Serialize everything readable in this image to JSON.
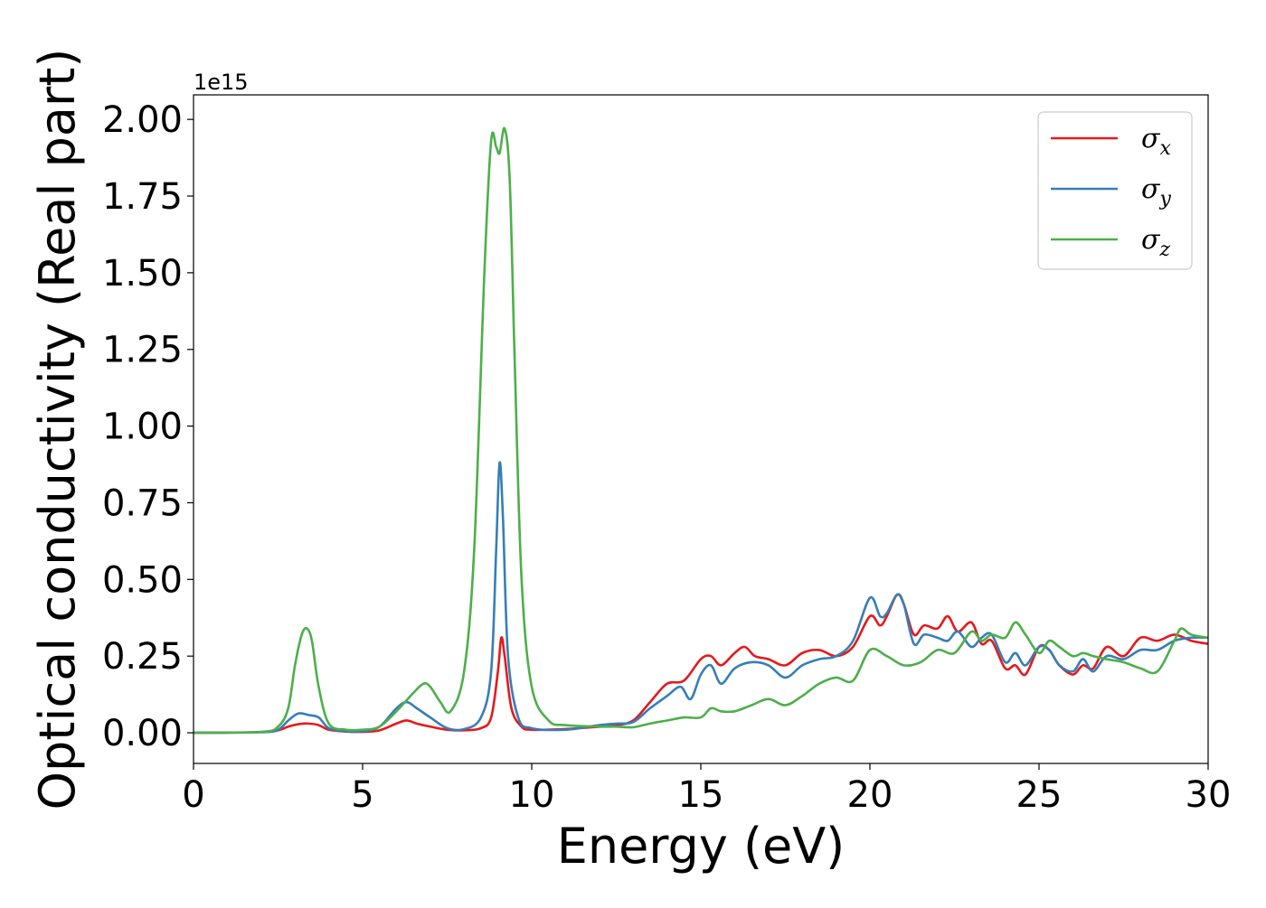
{
  "chart_data": {
    "type": "line",
    "xlabel": "Energy (eV)",
    "ylabel": "Optical conductivity (Real part)",
    "y_offset_label": "1e15",
    "xlim": [
      0,
      30
    ],
    "ylim": [
      -0.1,
      2.08
    ],
    "x_ticks": [
      0,
      5,
      10,
      15,
      20,
      25,
      30
    ],
    "x_tick_labels": [
      "0",
      "5",
      "10",
      "15",
      "20",
      "25",
      "30"
    ],
    "y_ticks": [
      0,
      0.25,
      0.5,
      0.75,
      1.0,
      1.25,
      1.5,
      1.75,
      2.0
    ],
    "y_tick_labels": [
      "0.00",
      "0.25",
      "0.50",
      "0.75",
      "1.00",
      "1.25",
      "1.50",
      "1.75",
      "2.00"
    ],
    "grid": false,
    "legend_position": "top-right",
    "series": [
      {
        "name": "σx",
        "legend_main": "σ",
        "legend_sub": "x",
        "color": "#e41a1c",
        "x": [
          0,
          2,
          2.5,
          2.8,
          3.1,
          3.4,
          3.7,
          4.0,
          4.5,
          5.0,
          5.5,
          6.0,
          6.3,
          6.6,
          7.0,
          7.5,
          8.0,
          8.5,
          8.8,
          9.0,
          9.1,
          9.2,
          9.4,
          9.7,
          10,
          11,
          12,
          12.5,
          13,
          13.5,
          14,
          14.5,
          15,
          15.3,
          15.6,
          16,
          16.3,
          16.6,
          17,
          17.5,
          18,
          18.5,
          19,
          19.5,
          20,
          20.3,
          20.5,
          20.8,
          21,
          21.3,
          21.6,
          22,
          22.3,
          22.6,
          23,
          23.3,
          23.6,
          24,
          24.3,
          24.6,
          25,
          25.3,
          25.6,
          26,
          26.3,
          26.6,
          27,
          27.5,
          28,
          28.5,
          29,
          29.5,
          30
        ],
        "y": [
          0,
          0.002,
          0.008,
          0.02,
          0.028,
          0.03,
          0.025,
          0.01,
          0.004,
          0.003,
          0.008,
          0.03,
          0.04,
          0.03,
          0.02,
          0.01,
          0.008,
          0.015,
          0.05,
          0.2,
          0.31,
          0.25,
          0.08,
          0.02,
          0.01,
          0.012,
          0.02,
          0.025,
          0.04,
          0.1,
          0.16,
          0.17,
          0.24,
          0.25,
          0.22,
          0.26,
          0.28,
          0.25,
          0.24,
          0.22,
          0.26,
          0.27,
          0.25,
          0.28,
          0.38,
          0.35,
          0.38,
          0.45,
          0.42,
          0.32,
          0.35,
          0.34,
          0.38,
          0.33,
          0.36,
          0.29,
          0.3,
          0.21,
          0.22,
          0.19,
          0.28,
          0.27,
          0.22,
          0.19,
          0.22,
          0.21,
          0.28,
          0.25,
          0.31,
          0.3,
          0.32,
          0.3,
          0.29
        ]
      },
      {
        "name": "σy",
        "legend_main": "σ",
        "legend_sub": "y",
        "color": "#377eb8",
        "x": [
          0,
          2,
          2.5,
          2.8,
          3.1,
          3.4,
          3.7,
          4.0,
          4.5,
          5.0,
          5.5,
          6.0,
          6.3,
          6.6,
          7.0,
          7.5,
          8.0,
          8.5,
          8.8,
          8.95,
          9.05,
          9.15,
          9.3,
          9.6,
          10,
          11,
          12,
          12.5,
          13,
          13.5,
          14,
          14.4,
          14.7,
          15,
          15.3,
          15.6,
          16,
          16.5,
          17,
          17.5,
          18,
          18.5,
          19,
          19.5,
          20,
          20.3,
          20.5,
          20.8,
          21,
          21.3,
          21.6,
          22,
          22.3,
          22.6,
          23,
          23.3,
          23.6,
          24,
          24.3,
          24.6,
          25,
          25.3,
          25.6,
          26,
          26.3,
          26.6,
          27,
          27.5,
          28,
          28.5,
          29,
          29.5,
          30
        ],
        "y": [
          0,
          0.002,
          0.01,
          0.04,
          0.063,
          0.058,
          0.05,
          0.015,
          0.005,
          0.005,
          0.02,
          0.08,
          0.1,
          0.08,
          0.05,
          0.015,
          0.012,
          0.05,
          0.2,
          0.6,
          0.88,
          0.7,
          0.25,
          0.05,
          0.015,
          0.01,
          0.025,
          0.03,
          0.035,
          0.08,
          0.12,
          0.15,
          0.11,
          0.19,
          0.22,
          0.16,
          0.21,
          0.23,
          0.22,
          0.18,
          0.22,
          0.24,
          0.25,
          0.3,
          0.44,
          0.38,
          0.39,
          0.45,
          0.42,
          0.29,
          0.32,
          0.31,
          0.3,
          0.33,
          0.28,
          0.31,
          0.32,
          0.23,
          0.26,
          0.22,
          0.28,
          0.27,
          0.22,
          0.2,
          0.24,
          0.2,
          0.25,
          0.24,
          0.27,
          0.27,
          0.3,
          0.31,
          0.31
        ]
      },
      {
        "name": "σz",
        "legend_main": "σ",
        "legend_sub": "z",
        "color": "#4daf4a",
        "x": [
          0,
          2,
          2.5,
          2.8,
          3.0,
          3.2,
          3.35,
          3.5,
          3.7,
          4.0,
          4.5,
          5.0,
          5.5,
          6.0,
          6.5,
          6.8,
          7.0,
          7.3,
          7.6,
          8.0,
          8.3,
          8.6,
          8.8,
          8.95,
          9.05,
          9.2,
          9.35,
          9.5,
          9.7,
          10,
          10.5,
          11,
          12,
          12.5,
          13,
          13.5,
          14,
          14.5,
          15,
          15.3,
          15.6,
          16,
          16.5,
          17,
          17.5,
          18,
          18.5,
          19,
          19.5,
          20,
          20.5,
          21,
          21.5,
          22,
          22.5,
          23,
          23.3,
          23.6,
          24,
          24.3,
          24.6,
          25,
          25.3,
          25.6,
          26,
          26.3,
          26.6,
          27,
          27.5,
          28,
          28.5,
          29,
          29.2,
          29.5,
          30
        ],
        "y": [
          0,
          0.003,
          0.02,
          0.08,
          0.22,
          0.32,
          0.34,
          0.3,
          0.15,
          0.03,
          0.01,
          0.01,
          0.02,
          0.07,
          0.13,
          0.16,
          0.15,
          0.1,
          0.07,
          0.2,
          0.6,
          1.5,
          1.93,
          1.91,
          1.89,
          1.97,
          1.8,
          1.2,
          0.5,
          0.15,
          0.04,
          0.025,
          0.02,
          0.02,
          0.018,
          0.03,
          0.04,
          0.05,
          0.05,
          0.08,
          0.07,
          0.07,
          0.09,
          0.11,
          0.09,
          0.12,
          0.16,
          0.18,
          0.17,
          0.27,
          0.25,
          0.22,
          0.23,
          0.27,
          0.26,
          0.33,
          0.3,
          0.32,
          0.31,
          0.36,
          0.32,
          0.26,
          0.3,
          0.28,
          0.25,
          0.26,
          0.25,
          0.24,
          0.23,
          0.21,
          0.2,
          0.3,
          0.34,
          0.32,
          0.31
        ]
      }
    ]
  }
}
